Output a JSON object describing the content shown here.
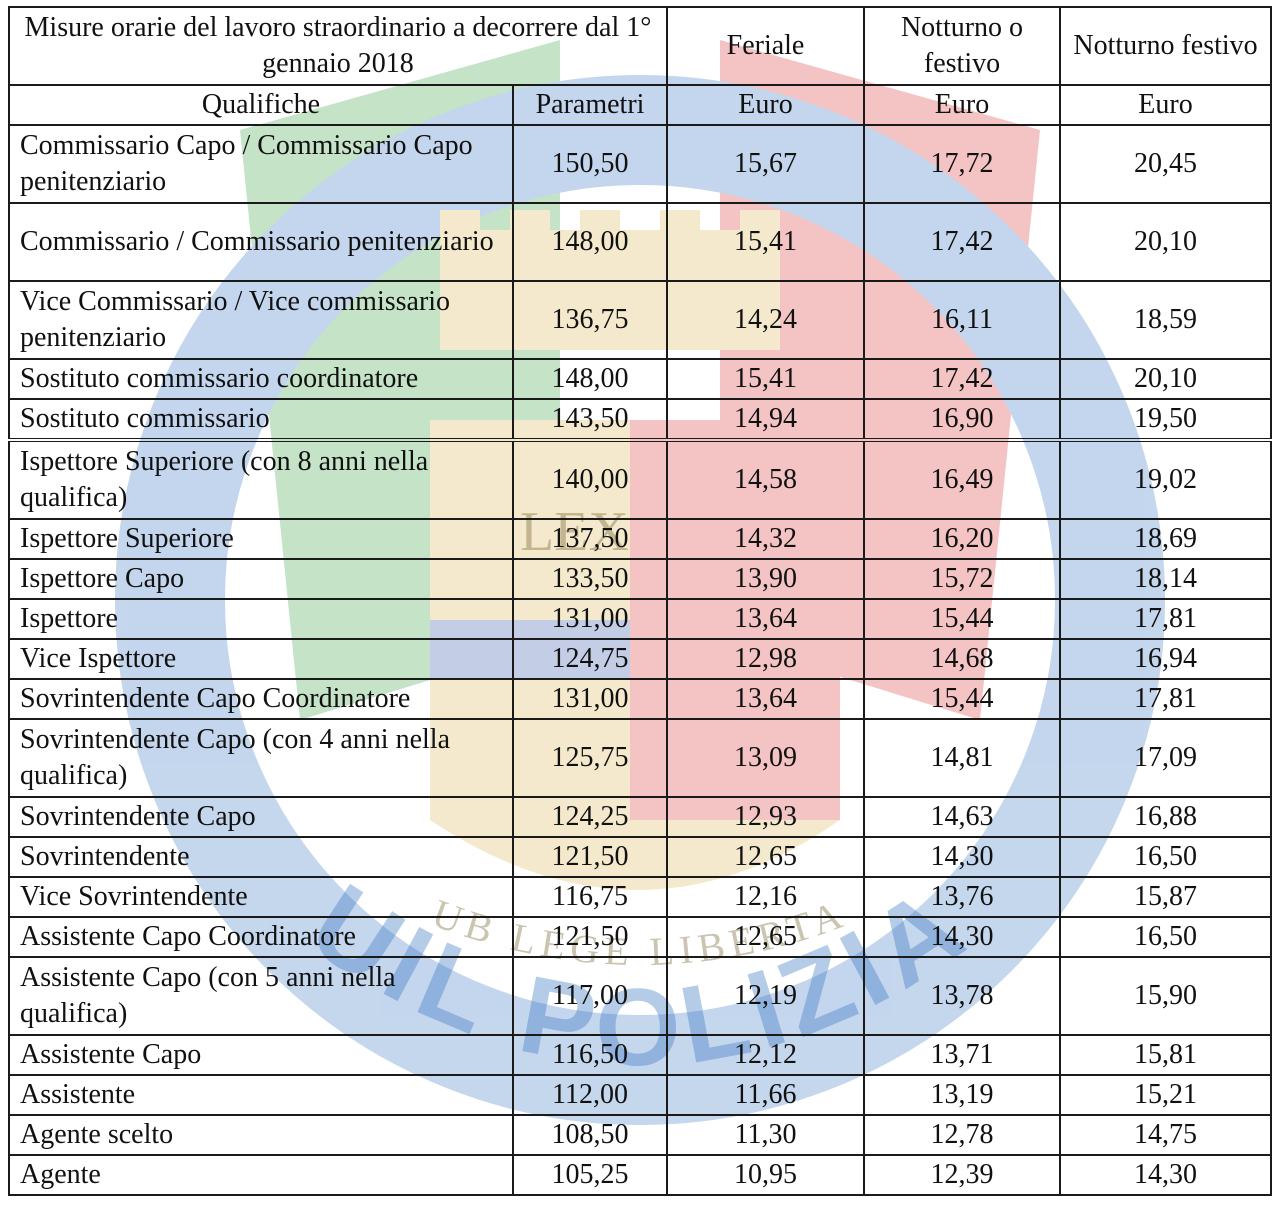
{
  "header": {
    "title": "Misure orarie del lavoro straordinario a decorrere dal 1° gennaio 2018",
    "col_feriale": "Feriale",
    "col_notturno_o_festivo": "Notturno o festivo",
    "col_notturno_festivo": "Notturno festivo",
    "sub_qualifiche": "Qualifiche",
    "sub_parametri": "Parametri",
    "sub_euro_1": "Euro",
    "sub_euro_2": "Euro",
    "sub_euro_3": "Euro"
  },
  "rows": [
    {
      "qualifica": "Commissario Capo / Commissario Capo penitenziario",
      "parametri": "150,50",
      "feriale": "15,67",
      "notturno_o_festivo": "17,72",
      "notturno_festivo": "20,45",
      "lines": 2
    },
    {
      "qualifica": "Commissario  / Commissario penitenziario",
      "parametri": "148,00",
      "feriale": "15,41",
      "notturno_o_festivo": "17,42",
      "notturno_festivo": "20,10",
      "lines": 2
    },
    {
      "qualifica": "Vice Commissario  / Vice commissario penitenziario",
      "parametri": "136,75",
      "feriale": "14,24",
      "notturno_o_festivo": "16,11",
      "notturno_festivo": "18,59",
      "lines": 2
    },
    {
      "qualifica": "Sostituto commissario coordinatore",
      "parametri": "148,00",
      "feriale": "15,41",
      "notturno_o_festivo": "17,42",
      "notturno_festivo": "20,10",
      "lines": 1
    },
    {
      "qualifica": "Sostituto commissario",
      "parametri": "143,50",
      "feriale": "14,94",
      "notturno_o_festivo": "16,90",
      "notturno_festivo": "19,50",
      "lines": 1
    },
    {
      "qualifica": "Ispettore Superiore (con 8 anni nella qualifica)",
      "parametri": "140,00",
      "feriale": "14,58",
      "notturno_o_festivo": "16,49",
      "notturno_festivo": "19,02",
      "lines": 2,
      "double_top": true
    },
    {
      "qualifica": "Ispettore Superiore",
      "parametri": "137,50",
      "feriale": "14,32",
      "notturno_o_festivo": "16,20",
      "notturno_festivo": "18,69",
      "lines": 1
    },
    {
      "qualifica": "Ispettore Capo",
      "parametri": "133,50",
      "feriale": "13,90",
      "notturno_o_festivo": "15,72",
      "notturno_festivo": "18,14",
      "lines": 1
    },
    {
      "qualifica": "Ispettore",
      "parametri": "131,00",
      "feriale": "13,64",
      "notturno_o_festivo": "15,44",
      "notturno_festivo": "17,81",
      "lines": 1
    },
    {
      "qualifica": "Vice Ispettore",
      "parametri": "124,75",
      "feriale": "12,98",
      "notturno_o_festivo": "14,68",
      "notturno_festivo": "16,94",
      "lines": 1
    },
    {
      "qualifica": "Sovrintendente Capo Coordinatore",
      "parametri": "131,00",
      "feriale": "13,64",
      "notturno_o_festivo": "15,44",
      "notturno_festivo": "17,81",
      "lines": 1
    },
    {
      "qualifica": "Sovrintendente Capo (con 4 anni nella qualifica)",
      "parametri": "125,75",
      "feriale": "13,09",
      "notturno_o_festivo": "14,81",
      "notturno_festivo": "17,09",
      "lines": 2
    },
    {
      "qualifica": "Sovrintendente Capo",
      "parametri": "124,25",
      "feriale": "12,93",
      "notturno_o_festivo": "14,63",
      "notturno_festivo": "16,88",
      "lines": 1
    },
    {
      "qualifica": "Sovrintendente",
      "parametri": "121,50",
      "feriale": "12,65",
      "notturno_o_festivo": "14,30",
      "notturno_festivo": "16,50",
      "lines": 1
    },
    {
      "qualifica": "Vice Sovrintendente",
      "parametri": "116,75",
      "feriale": "12,16",
      "notturno_o_festivo": "13,76",
      "notturno_festivo": "15,87",
      "lines": 1
    },
    {
      "qualifica": "Assistente Capo Coordinatore",
      "parametri": "121,50",
      "feriale": "12,65",
      "notturno_o_festivo": "14,30",
      "notturno_festivo": "16,50",
      "lines": 1
    },
    {
      "qualifica": "Assistente Capo (con 5 anni nella qualifica)",
      "parametri": "117,00",
      "feriale": "12,19",
      "notturno_o_festivo": "13,78",
      "notturno_festivo": "15,90",
      "lines": 2
    },
    {
      "qualifica": "Assistente Capo",
      "parametri": "116,50",
      "feriale": "12,12",
      "notturno_o_festivo": "13,71",
      "notturno_festivo": "15,81",
      "lines": 1
    },
    {
      "qualifica": "Assistente",
      "parametri": "112,00",
      "feriale": "11,66",
      "notturno_o_festivo": "13,19",
      "notturno_festivo": "15,21",
      "lines": 1
    },
    {
      "qualifica": "Agente scelto",
      "parametri": "108,50",
      "feriale": "11,30",
      "notturno_o_festivo": "12,78",
      "notturno_festivo": "14,75",
      "lines": 1
    },
    {
      "qualifica": "Agente",
      "parametri": "105,25",
      "feriale": "10,95",
      "notturno_o_festivo": "12,39",
      "notturno_festivo": "14,30",
      "lines": 1
    }
  ],
  "watermark": {
    "motto": "SUB LEGE LIBERTAS",
    "brand": "UIL POLIZIA",
    "shield_text": "LEX",
    "colors": {
      "ring_blue": "#2f6fc0",
      "green": "#2e9e3a",
      "red": "#d93030",
      "gold": "#d9b44a",
      "shield_blue": "#2f4fa8"
    }
  }
}
